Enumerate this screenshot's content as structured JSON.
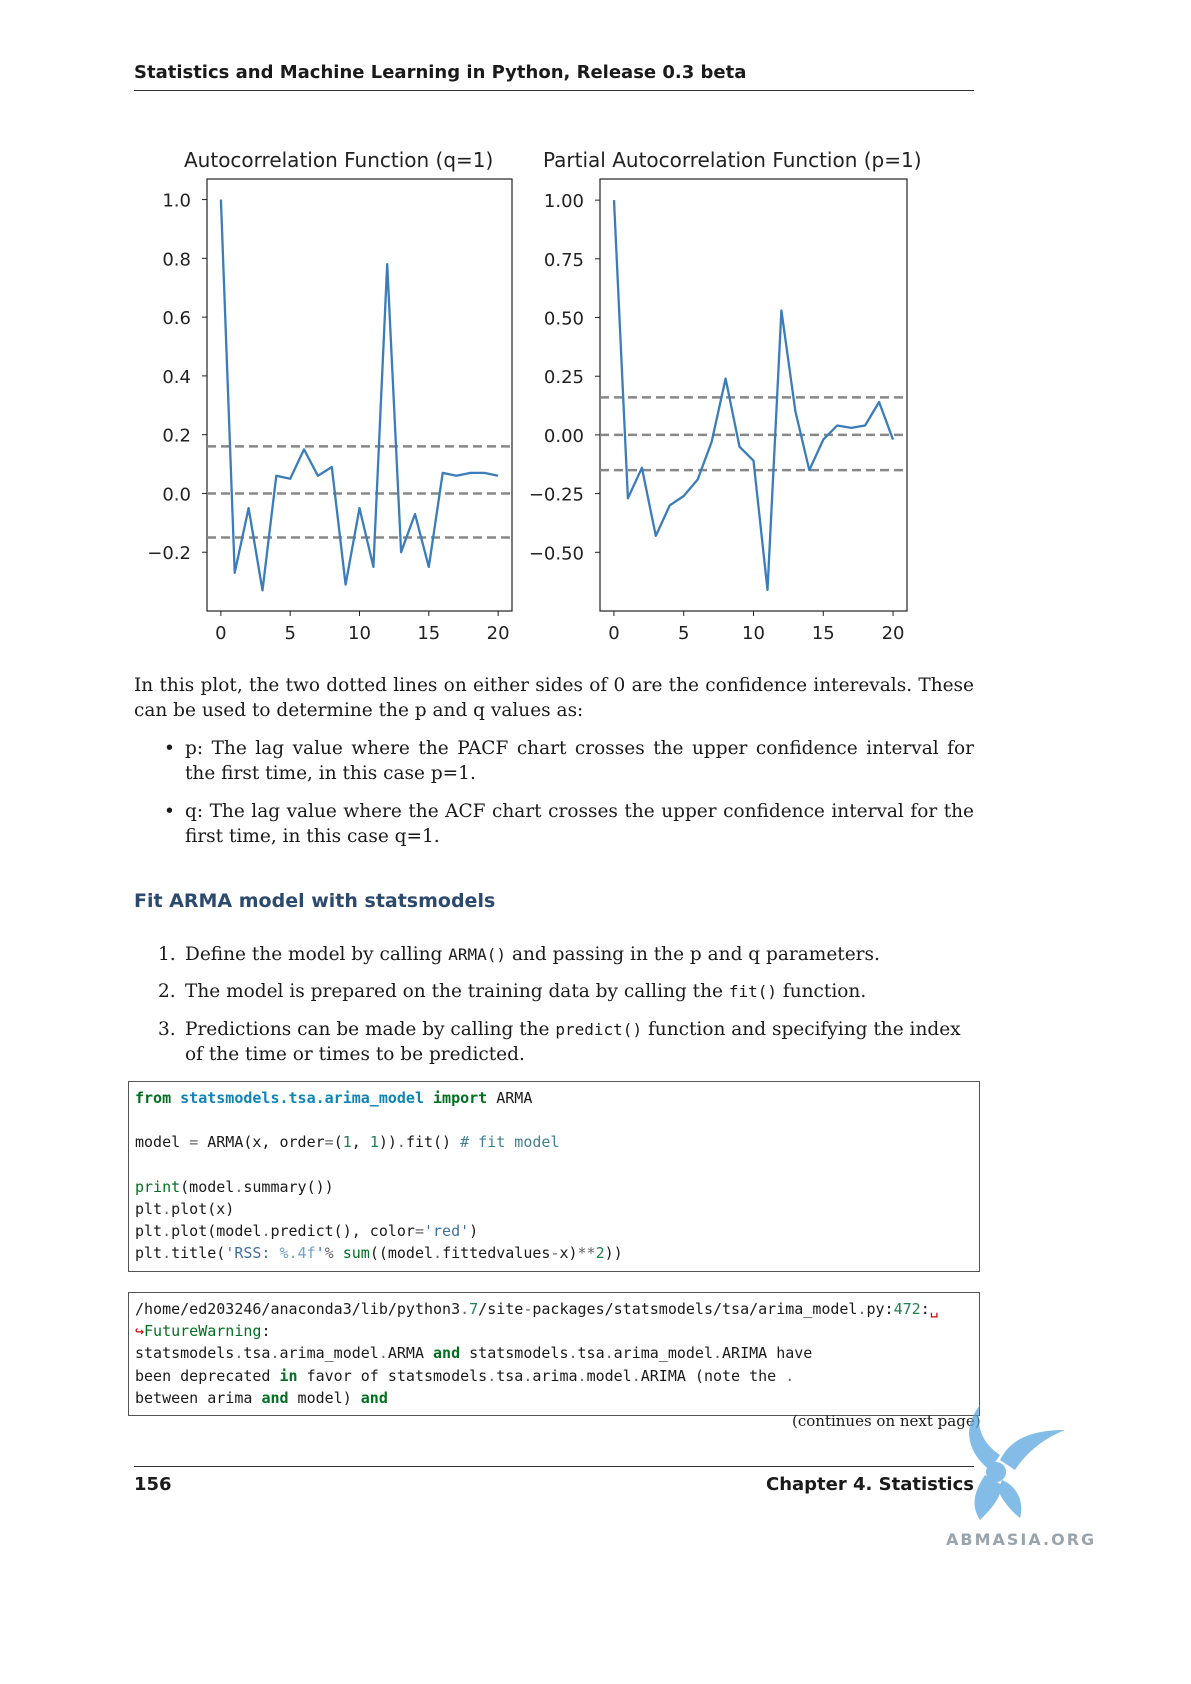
{
  "header": {
    "title": "Statistics and Machine Learning in Python, Release 0.3 beta"
  },
  "chart_data": [
    {
      "type": "line",
      "title": "Autocorrelation Function  (q=1)",
      "x": [
        0,
        1,
        2,
        3,
        4,
        5,
        6,
        7,
        8,
        9,
        10,
        11,
        12,
        13,
        14,
        15,
        16,
        17,
        18,
        19,
        20
      ],
      "values": [
        1.0,
        -0.27,
        -0.05,
        -0.33,
        0.06,
        0.05,
        0.15,
        0.06,
        0.09,
        -0.31,
        -0.05,
        -0.25,
        0.78,
        -0.2,
        -0.07,
        -0.25,
        0.07,
        0.06,
        0.07,
        0.07,
        0.06
      ],
      "confidence_lines": [
        0.16,
        0.0,
        -0.15
      ],
      "xticks": [
        "0",
        "5",
        "10",
        "15",
        "20"
      ],
      "yticks": [
        "1.0",
        "0.8",
        "0.6",
        "0.4",
        "0.2",
        "0.0",
        "−0.2"
      ],
      "xlim": [
        -1,
        21
      ],
      "ylim": [
        -0.4,
        1.07
      ],
      "color": "#3b7dba"
    },
    {
      "type": "line",
      "title": "Partial Autocorrelation Function (p=1)",
      "x": [
        0,
        1,
        2,
        3,
        4,
        5,
        6,
        7,
        8,
        9,
        10,
        11,
        12,
        13,
        14,
        15,
        16,
        17,
        18,
        19,
        20
      ],
      "values": [
        1.0,
        -0.27,
        -0.14,
        -0.43,
        -0.3,
        -0.26,
        -0.19,
        -0.03,
        0.24,
        -0.05,
        -0.11,
        -0.66,
        0.53,
        0.1,
        -0.15,
        -0.02,
        0.04,
        0.03,
        0.04,
        0.14,
        -0.02
      ],
      "confidence_lines": [
        0.16,
        0.0,
        -0.15
      ],
      "xticks": [
        "0",
        "5",
        "10",
        "15",
        "20"
      ],
      "yticks": [
        "1.00",
        "0.75",
        "0.50",
        "0.25",
        "0.00",
        "−0.25",
        "−0.50"
      ],
      "xlim": [
        -1,
        21
      ],
      "ylim": [
        -0.75,
        1.09
      ],
      "color": "#3b7dba"
    }
  ],
  "body": {
    "intro": "In this plot, the two dotted lines on either sides of 0 are the confidence interevals. These can be used to determine the p and q values as:",
    "bullets": [
      "p: The lag value where the PACF chart crosses the upper confidence interval for the first time, in this case p=1.",
      "q: The lag value where the ACF chart crosses the upper confidence interval for the first time, in this case q=1."
    ],
    "bullet_marker": "•"
  },
  "section": {
    "title": "Fit ARMA model with statsmodels"
  },
  "steps": [
    {
      "num": "1.",
      "pre": "Define the model by calling ",
      "code": "ARMA()",
      "post": " and passing in the p and q parameters."
    },
    {
      "num": "2.",
      "pre": "The model is prepared on the training data by calling the ",
      "code": "fit()",
      "post": " function."
    },
    {
      "num": "3.",
      "pre": "Predictions can be made by calling the ",
      "code": "predict()",
      "post": " function and specifying the index of the time or times to be predicted."
    }
  ],
  "code": {
    "l1_from": "from",
    "l1_mod": "statsmodels.tsa.arima_model",
    "l1_import": "import",
    "l1_name": " ARMA",
    "l2_a": "model ",
    "l2_eq": "=",
    "l2_b": " ARMA(x, order",
    "l2_eq2": "=",
    "l2_c": "(",
    "l2_n1": "1",
    "l2_d": ", ",
    "l2_n2": "1",
    "l2_e": "))",
    "l2_dot": ".",
    "l2_f": "fit() ",
    "l2_cmt": "# fit model",
    "l3_print": "print",
    "l3_a": "(model",
    "l3_dot": ".",
    "l3_b": "summary())",
    "l4_a": "plt",
    "l4_dot": ".",
    "l4_b": "plot(x)",
    "l5_a": "plt",
    "l5_dot": ".",
    "l5_b": "plot(model",
    "l5_dot2": ".",
    "l5_c": "predict(), color",
    "l5_eq": "=",
    "l5_str": "'red'",
    "l5_d": ")",
    "l6_a": "plt",
    "l6_dot": ".",
    "l6_b": "title(",
    "l6_str": "'RSS: ",
    "l6_fmt": "%.4f",
    "l6_str2": "'",
    "l6_pct": "%",
    "l6_sp": " ",
    "l6_sum": "sum",
    "l6_c": "((model",
    "l6_dot2": ".",
    "l6_d": "fittedvalues",
    "l6_minus": "-",
    "l6_e": "x)",
    "l6_pow": "**",
    "l6_n": "2",
    "l6_f": "))"
  },
  "output": {
    "o1_a": "/home/ed203246/anaconda3/lib/python3",
    "o1_dot": ".",
    "o1_n": "7",
    "o1_b": "/site",
    "o1_dash": "-",
    "o1_c": "packages/statsmodels/tsa/arima_model",
    "o1_dot2": ".",
    "o1_d": "py:",
    "o1_num": "472",
    "o1_e": ":",
    "o1_wrap": "␣",
    "o2_arrow": "↪",
    "o2_a": "FutureWarning",
    "o2_b": ":",
    "o3_a": "statsmodels",
    "o3_dot1": ".",
    "o3_b": "tsa",
    "o3_dot2": ".",
    "o3_c": "arima_model",
    "o3_dot3": ".",
    "o3_d": "ARMA ",
    "o3_and": "and",
    "o3_e": " statsmodels",
    "o3_dot4": ".",
    "o3_f": "tsa",
    "o3_dot5": ".",
    "o3_g": "arima_model",
    "o3_dot6": ".",
    "o3_h": "ARIMA have",
    "o4_a": "been deprecated ",
    "o4_in": "in",
    "o4_b": " favor of statsmodels",
    "o4_dot1": ".",
    "o4_c": "tsa",
    "o4_dot2": ".",
    "o4_d": "arima",
    "o4_dot3": ".",
    "o4_e": "model",
    "o4_dot4": ".",
    "o4_f": "ARIMA (note the ",
    "o4_dot5": ".",
    "o5_a": "between arima ",
    "o5_and": "and",
    "o5_b": " model) ",
    "o5_and2": "and"
  },
  "continues": "(continues on next page)",
  "footer": {
    "page": "156",
    "chapter": "Chapter 4.  Statistics"
  },
  "watermark": {
    "text": "ABMASIA.ORG"
  }
}
